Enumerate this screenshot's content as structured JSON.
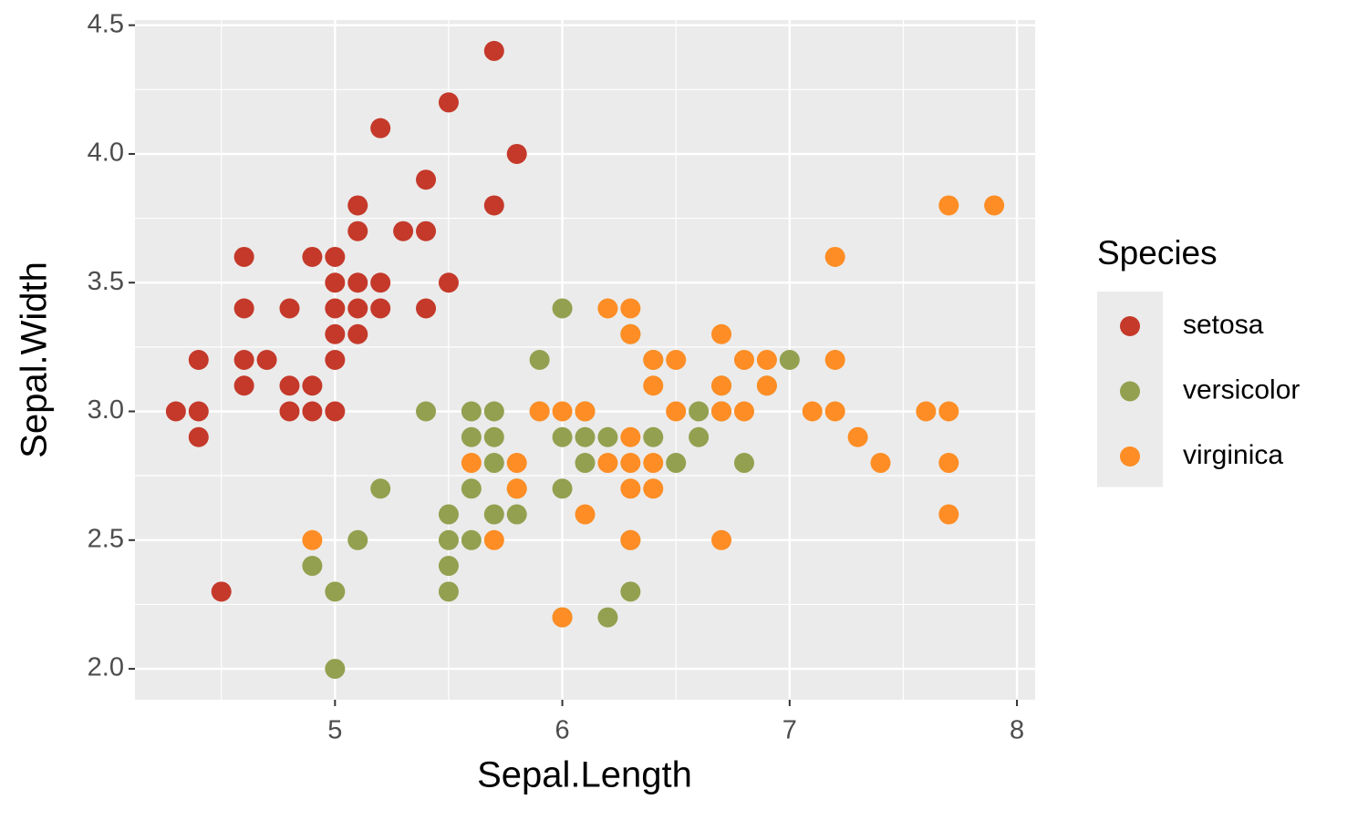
{
  "chart_data": {
    "type": "scatter",
    "x_label": "Sepal.Length",
    "y_label": "Sepal.Width",
    "legend_title": "Species",
    "legend": "right",
    "grid": true,
    "xlim": [
      4.12,
      8.08
    ],
    "xticks": [
      5,
      6,
      7,
      8
    ],
    "ylim": [
      1.88,
      4.52
    ],
    "yticks": [
      {
        "value": 2,
        "label": "2.0"
      },
      {
        "value": 2.5,
        "label": "2.5"
      },
      {
        "value": 3,
        "label": "3.0"
      },
      {
        "value": 3.5,
        "label": "3.5"
      },
      {
        "value": 4,
        "label": "4.0"
      },
      {
        "value": 4.5,
        "label": "4.5"
      }
    ],
    "series": [
      {
        "name": "setosa",
        "color": "#c4392a",
        "x": [
          4.3,
          4.4,
          4.4,
          4.4,
          4.5,
          4.6,
          4.6,
          4.6,
          4.6,
          4.7,
          4.8,
          4.8,
          4.8,
          4.9,
          4.9,
          4.9,
          5.0,
          5.0,
          5.0,
          5.0,
          5.0,
          5.0,
          5.1,
          5.1,
          5.1,
          5.1,
          5.1,
          5.2,
          5.2,
          5.2,
          5.3,
          5.4,
          5.4,
          5.4,
          5.5,
          5.5,
          5.7,
          5.7,
          5.8
        ],
        "values": [
          3.0,
          3.0,
          3.2,
          2.9,
          2.3,
          3.6,
          3.4,
          3.2,
          3.1,
          3.2,
          3.4,
          3.1,
          3.0,
          3.6,
          3.1,
          3.0,
          3.6,
          3.5,
          3.4,
          3.3,
          3.2,
          3.0,
          3.8,
          3.7,
          3.5,
          3.4,
          3.3,
          4.1,
          3.5,
          3.4,
          3.7,
          3.9,
          3.7,
          3.4,
          4.2,
          3.5,
          4.4,
          3.8,
          4.0
        ]
      },
      {
        "name": "versicolor",
        "color": "#93a04f",
        "x": [
          7.0,
          6.4,
          6.9,
          5.5,
          6.5,
          5.7,
          6.3,
          4.9,
          6.6,
          5.2,
          5.0,
          5.9,
          6.0,
          6.1,
          5.6,
          6.7,
          5.6,
          5.8,
          6.2,
          5.6,
          5.9,
          6.1,
          6.3,
          6.4,
          6.6,
          6.8,
          6.7,
          6.0,
          5.7,
          5.5,
          6.0,
          5.4,
          6.0,
          6.3,
          5.5,
          5.5,
          6.1,
          5.8,
          5.0,
          5.6,
          5.7,
          5.7,
          6.2,
          5.1
        ],
        "values": [
          3.2,
          3.2,
          3.1,
          2.3,
          2.8,
          2.8,
          3.3,
          2.4,
          2.9,
          2.7,
          2.0,
          3.0,
          2.2,
          2.9,
          2.9,
          3.1,
          3.0,
          2.7,
          2.2,
          2.5,
          3.2,
          2.8,
          2.5,
          2.9,
          3.0,
          2.8,
          3.0,
          2.9,
          2.6,
          2.4,
          2.7,
          3.0,
          3.4,
          2.3,
          2.5,
          2.6,
          3.0,
          2.6,
          2.3,
          2.7,
          3.0,
          2.9,
          2.9,
          2.5
        ]
      },
      {
        "name": "virginica",
        "color": "#fd8d24",
        "x": [
          6.3,
          5.8,
          7.1,
          6.3,
          6.5,
          7.6,
          4.9,
          7.3,
          6.7,
          7.2,
          6.5,
          6.4,
          6.8,
          5.7,
          5.8,
          6.4,
          7.7,
          7.7,
          6.0,
          6.9,
          5.6,
          7.7,
          6.3,
          6.7,
          7.2,
          6.2,
          6.1,
          6.4,
          7.2,
          7.4,
          7.9,
          6.3,
          6.1,
          7.7,
          6.3,
          6.4,
          6.0,
          6.9,
          6.7,
          6.8,
          6.7,
          6.3,
          6.2,
          5.9
        ],
        "values": [
          3.3,
          2.7,
          3.0,
          2.9,
          3.0,
          3.0,
          2.5,
          2.9,
          2.5,
          3.6,
          3.2,
          2.7,
          3.0,
          2.5,
          2.8,
          3.2,
          3.8,
          2.6,
          2.2,
          3.2,
          2.8,
          2.8,
          2.7,
          3.3,
          3.2,
          2.8,
          3.0,
          2.8,
          3.0,
          2.8,
          3.8,
          2.8,
          2.6,
          3.0,
          3.4,
          3.1,
          3.0,
          3.1,
          3.1,
          3.2,
          3.0,
          2.5,
          3.4,
          3.0
        ]
      }
    ]
  }
}
